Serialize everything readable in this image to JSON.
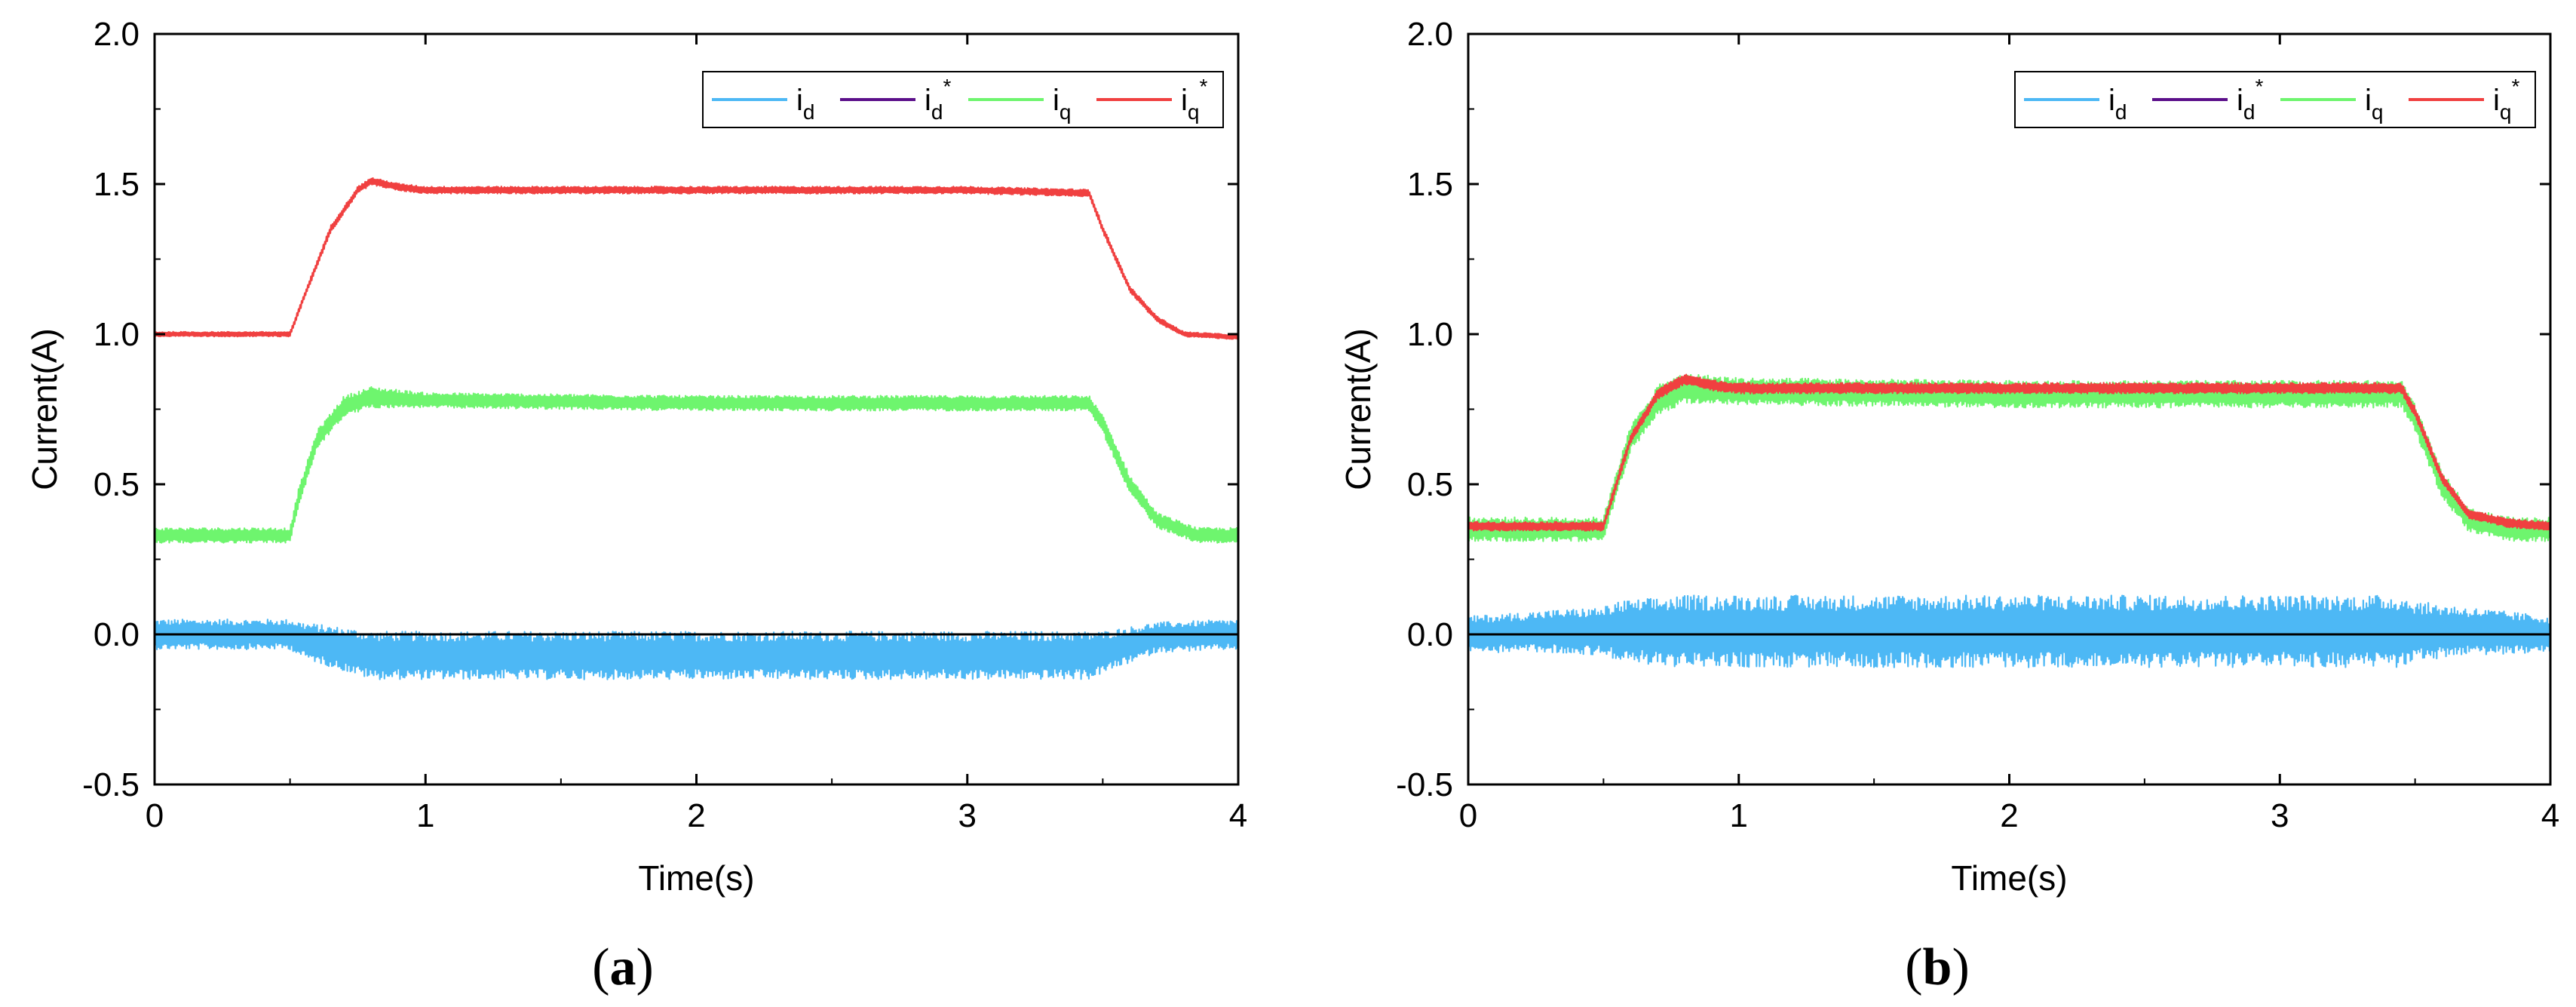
{
  "figure": {
    "panels": [
      {
        "id": "a",
        "label_open": "(",
        "label_letter": "a",
        "label_close": ")"
      },
      {
        "id": "b",
        "label_open": "(",
        "label_letter": "b",
        "label_close": ")"
      }
    ]
  },
  "chart_data": [
    {
      "type": "line",
      "panel": "a",
      "xlabel": "Time(s)",
      "ylabel": "Current(A)",
      "xlim": [
        0,
        4
      ],
      "ylim": [
        -0.5,
        2.0
      ],
      "xticks": [
        0,
        1,
        2,
        3,
        4
      ],
      "xtick_labels": [
        "0",
        "1",
        "2",
        "3",
        "4"
      ],
      "yticks": [
        -0.5,
        0.0,
        0.5,
        1.0,
        1.5,
        2.0
      ],
      "ytick_labels": [
        "-0.5",
        "0.0",
        "0.5",
        "1.0",
        "1.5",
        "2.0"
      ],
      "legend_position": "top-right",
      "series": [
        {
          "name": "i_d",
          "legend_main": "i",
          "legend_sub": "d",
          "legend_sup": "",
          "color": "#4db8f5",
          "x": [
            0,
            0.5,
            0.55,
            0.8,
            1.0,
            2.0,
            3.0,
            3.45,
            3.5,
            3.7,
            4.0
          ],
          "y": [
            0.0,
            0.0,
            -0.02,
            -0.07,
            -0.07,
            -0.07,
            -0.07,
            -0.07,
            -0.06,
            -0.01,
            0.0
          ],
          "noise": [
            0.05,
            0.05,
            0.06,
            0.08,
            0.08,
            0.08,
            0.08,
            0.08,
            0.07,
            0.05,
            0.05
          ]
        },
        {
          "name": "i_d*",
          "legend_main": "i",
          "legend_sub": "d",
          "legend_sup": "*",
          "color": "#5b0f8a",
          "x": [
            0,
            4
          ],
          "y": [
            0.0,
            0.0
          ],
          "noise": [
            0,
            0
          ]
        },
        {
          "name": "i_q",
          "legend_main": "i",
          "legend_sub": "q",
          "legend_sup": "",
          "color": "#6ef56e",
          "x": [
            0,
            0.5,
            0.53,
            0.6,
            0.7,
            0.8,
            1.0,
            2.0,
            3.0,
            3.45,
            3.5,
            3.6,
            3.7,
            3.85,
            4.0
          ],
          "y": [
            0.33,
            0.33,
            0.45,
            0.65,
            0.76,
            0.79,
            0.78,
            0.77,
            0.77,
            0.77,
            0.7,
            0.5,
            0.38,
            0.33,
            0.33
          ],
          "noise": [
            0.025,
            0.025,
            0.03,
            0.03,
            0.035,
            0.035,
            0.025,
            0.025,
            0.025,
            0.025,
            0.03,
            0.03,
            0.025,
            0.025,
            0.025
          ]
        },
        {
          "name": "i_q*",
          "legend_main": "i",
          "legend_sub": "q",
          "legend_sup": "*",
          "color": "#f04040",
          "x": [
            0,
            0.5,
            0.55,
            0.65,
            0.75,
            0.8,
            0.9,
            1.0,
            2.0,
            3.0,
            3.45,
            3.5,
            3.6,
            3.7,
            3.8,
            4.0
          ],
          "y": [
            1.0,
            1.0,
            1.12,
            1.35,
            1.48,
            1.51,
            1.49,
            1.48,
            1.48,
            1.48,
            1.47,
            1.35,
            1.15,
            1.05,
            1.0,
            0.99
          ],
          "noise": [
            0.008,
            0.008,
            0.01,
            0.012,
            0.012,
            0.012,
            0.012,
            0.012,
            0.012,
            0.012,
            0.012,
            0.012,
            0.01,
            0.01,
            0.008,
            0.008
          ]
        }
      ]
    },
    {
      "type": "line",
      "panel": "b",
      "xlabel": "Time(s)",
      "ylabel": "Current(A)",
      "xlim": [
        0,
        4
      ],
      "ylim": [
        -0.5,
        2.0
      ],
      "xticks": [
        0,
        1,
        2,
        3,
        4
      ],
      "xtick_labels": [
        "0",
        "1",
        "2",
        "3",
        "4"
      ],
      "yticks": [
        -0.5,
        0.0,
        0.5,
        1.0,
        1.5,
        2.0
      ],
      "ytick_labels": [
        "-0.5",
        "0.0",
        "0.5",
        "1.0",
        "1.5",
        "2.0"
      ],
      "legend_position": "top-right",
      "series": [
        {
          "name": "i_d",
          "legend_main": "i",
          "legend_sub": "d",
          "legend_sup": "",
          "color": "#4db8f5",
          "x": [
            0,
            0.3,
            0.5,
            0.55,
            0.8,
            1.0,
            2.0,
            3.0,
            3.45,
            3.5,
            3.7,
            4.0
          ],
          "y": [
            0.0,
            0.01,
            0.01,
            0.01,
            0.01,
            0.01,
            0.01,
            0.01,
            0.01,
            0.01,
            0.01,
            0.0
          ],
          "noise": [
            0.06,
            0.07,
            0.08,
            0.1,
            0.12,
            0.12,
            0.12,
            0.12,
            0.12,
            0.1,
            0.08,
            0.06
          ]
        },
        {
          "name": "i_d*",
          "legend_main": "i",
          "legend_sub": "d",
          "legend_sup": "*",
          "color": "#5b0f8a",
          "x": [
            0,
            4
          ],
          "y": [
            0.0,
            0.0
          ],
          "noise": [
            0,
            0
          ]
        },
        {
          "name": "i_q",
          "legend_main": "i",
          "legend_sub": "q",
          "legend_sup": "",
          "color": "#6ef56e",
          "x": [
            0,
            0.5,
            0.53,
            0.6,
            0.7,
            0.8,
            1.0,
            2.0,
            3.0,
            3.45,
            3.5,
            3.6,
            3.7,
            3.85,
            4.0
          ],
          "y": [
            0.35,
            0.35,
            0.45,
            0.65,
            0.78,
            0.82,
            0.81,
            0.8,
            0.8,
            0.8,
            0.72,
            0.5,
            0.38,
            0.35,
            0.35
          ],
          "noise": [
            0.04,
            0.04,
            0.045,
            0.045,
            0.05,
            0.05,
            0.045,
            0.045,
            0.045,
            0.045,
            0.045,
            0.045,
            0.04,
            0.04,
            0.04
          ]
        },
        {
          "name": "i_q*",
          "legend_main": "i",
          "legend_sub": "q",
          "legend_sup": "*",
          "color": "#f04040",
          "x": [
            0,
            0.5,
            0.53,
            0.6,
            0.7,
            0.8,
            0.9,
            1.0,
            2.0,
            3.0,
            3.45,
            3.5,
            3.6,
            3.7,
            3.85,
            4.0
          ],
          "y": [
            0.36,
            0.36,
            0.45,
            0.65,
            0.8,
            0.85,
            0.83,
            0.82,
            0.82,
            0.82,
            0.82,
            0.74,
            0.52,
            0.4,
            0.37,
            0.36
          ],
          "noise": [
            0.015,
            0.015,
            0.015,
            0.015,
            0.018,
            0.018,
            0.018,
            0.018,
            0.018,
            0.018,
            0.018,
            0.018,
            0.015,
            0.015,
            0.015,
            0.015
          ]
        }
      ]
    }
  ]
}
